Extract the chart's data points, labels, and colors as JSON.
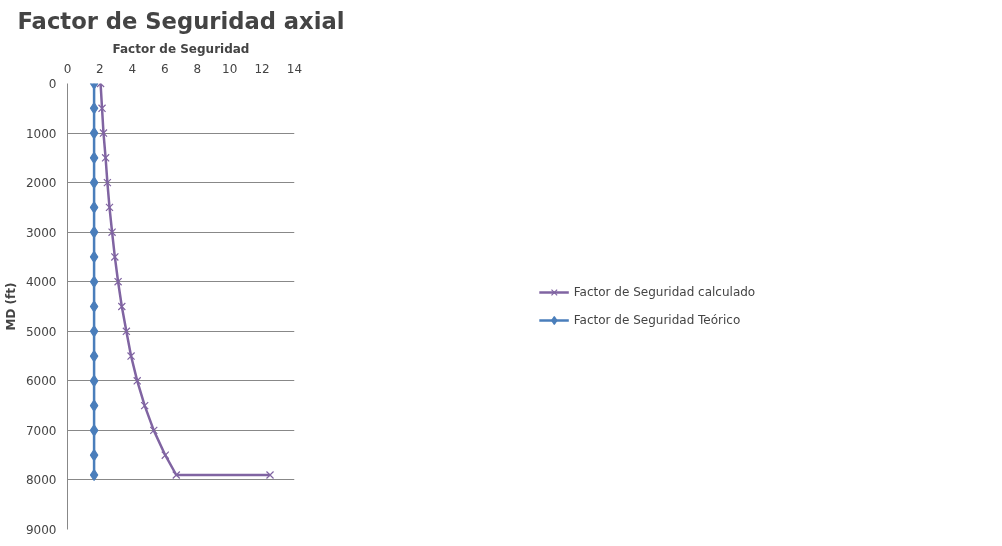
{
  "chart_data": {
    "type": "line",
    "title": "Factor de Seguridad axial",
    "xlabel": "Factor de Seguridad",
    "ylabel": "MD (ft)",
    "xlim": [
      0,
      14
    ],
    "xticks": [
      0,
      2,
      4,
      6,
      8,
      10,
      12,
      14
    ],
    "ylim": [
      9000,
      0
    ],
    "yticks": [
      0,
      1000,
      2000,
      3000,
      4000,
      5000,
      6000,
      7000,
      8000,
      9000
    ],
    "grid": "y",
    "legend": "right",
    "series": [
      {
        "name": "Factor de Seguridad calculado",
        "color": "#8064a2",
        "marker": "cross",
        "x": [
          2.04,
          2.13,
          2.22,
          2.35,
          2.46,
          2.59,
          2.75,
          2.92,
          3.12,
          3.35,
          3.63,
          3.92,
          4.3,
          4.76,
          5.32,
          6.03,
          6.71,
          12.49
        ],
        "values": [
          0,
          500,
          1000,
          1500,
          2000,
          2500,
          3000,
          3500,
          4000,
          4500,
          5000,
          5500,
          6000,
          6500,
          7000,
          7500,
          7900,
          7900
        ]
      },
      {
        "name": "Factor de Seguridad Teórico",
        "color": "#4a7ebb",
        "marker": "diamond",
        "x": [
          1.64,
          1.64,
          1.64,
          1.64,
          1.64,
          1.64,
          1.64,
          1.64,
          1.64,
          1.64,
          1.64,
          1.64,
          1.64,
          1.64,
          1.64,
          1.64,
          1.64
        ],
        "values": [
          0,
          500,
          1000,
          1500,
          2000,
          2500,
          3000,
          3500,
          4000,
          4500,
          5000,
          5500,
          6000,
          6500,
          7000,
          7500,
          7900
        ]
      }
    ]
  }
}
